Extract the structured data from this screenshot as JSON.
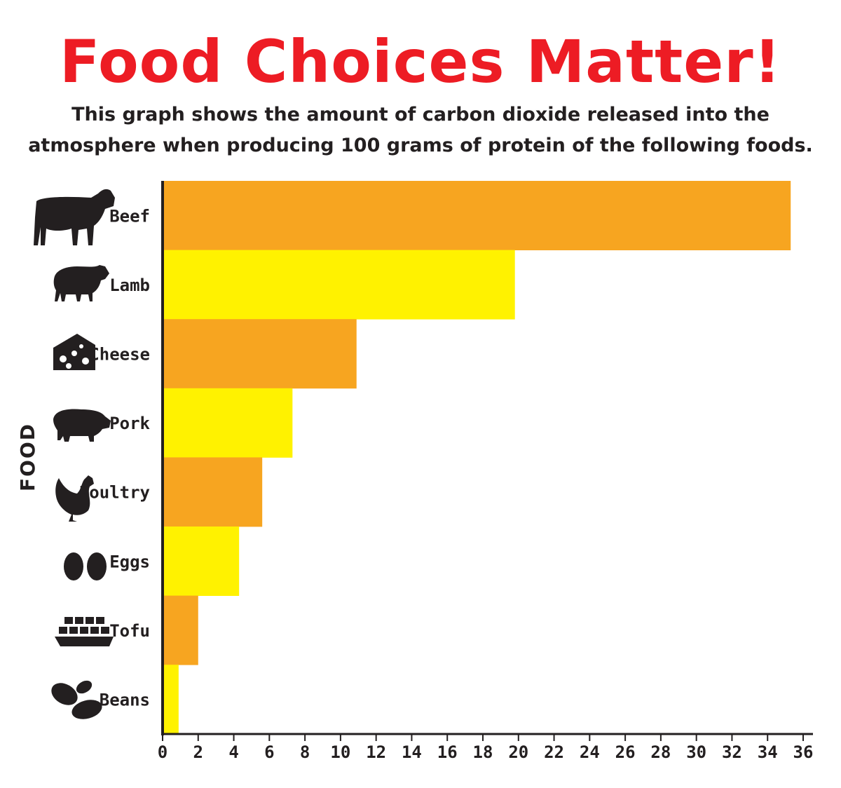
{
  "header": {
    "title": "Food Choices Matter!",
    "subtitle_line1": "This graph shows the amount of carbon dioxide released into the",
    "subtitle_line2": "atmosphere when producing 100 grams of protein of the following foods."
  },
  "chart_data": {
    "type": "bar",
    "orientation": "horizontal",
    "title": "Food Choices Matter!",
    "ylabel": "FOOD",
    "xlabel": "",
    "categories": [
      "Beef",
      "Lamb",
      "Cheese",
      "Pork",
      "Poultry",
      "Eggs",
      "Tofu",
      "Beans"
    ],
    "icons": [
      "cow-icon",
      "sheep-icon",
      "cheese-icon",
      "pig-icon",
      "chicken-icon",
      "eggs-icon",
      "tofu-icon",
      "beans-icon"
    ],
    "values": [
      35.3,
      19.8,
      10.9,
      7.3,
      5.6,
      4.3,
      2.0,
      0.9
    ],
    "xlim": [
      0,
      36
    ],
    "xticks": [
      0,
      2,
      4,
      6,
      8,
      10,
      12,
      14,
      16,
      18,
      20,
      22,
      24,
      26,
      28,
      30,
      32,
      34,
      36
    ],
    "grid": false,
    "colors": [
      "#f7a520",
      "#fff200"
    ]
  },
  "colors": {
    "title": "#ed1c24",
    "text": "#231f20"
  }
}
